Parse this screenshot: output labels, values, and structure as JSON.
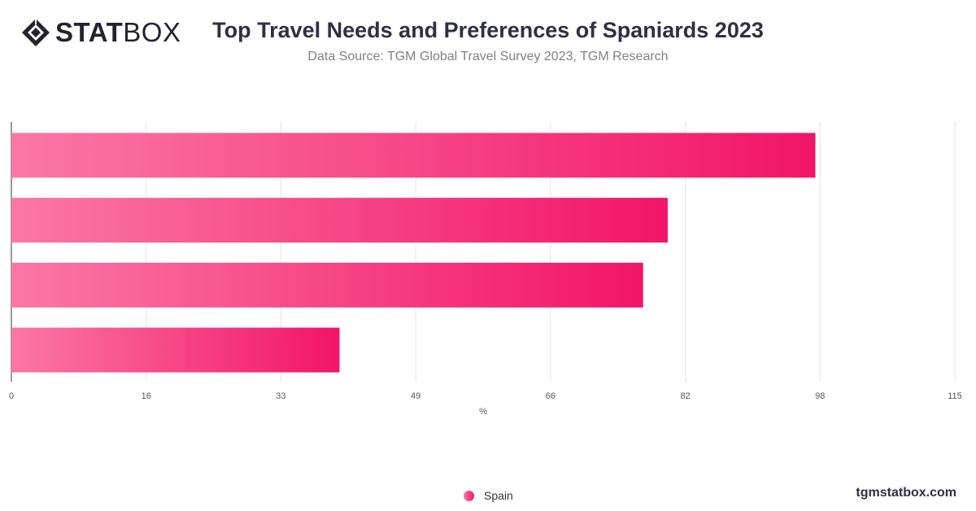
{
  "brand": {
    "logo_bold": "STAT",
    "logo_light": "BOX",
    "footer": "tgmstatbox.com"
  },
  "header": {
    "title": "Top Travel Needs and Preferences of Spaniards 2023",
    "subtitle": "Data Source: TGM Global Travel Survey 2023, TGM Research"
  },
  "colors": {
    "bar_start": "#fb77a6",
    "bar_end": "#f21567",
    "grid": "#e3e3e3",
    "axis": "#333333",
    "text_dark": "#2f2f45"
  },
  "chart_data": {
    "type": "bar",
    "orientation": "horizontal",
    "categories": [
      "",
      "",
      "",
      ""
    ],
    "series": [
      {
        "name": "Spain",
        "values": [
          98,
          80,
          77,
          40
        ]
      }
    ],
    "xlabel": "%",
    "ylabel": "",
    "xlim": [
      0,
      115
    ],
    "x_ticks": [
      "0",
      "16",
      "33",
      "49",
      "66",
      "82",
      "98",
      "115"
    ],
    "grid": true,
    "legend_position": "bottom-center"
  }
}
